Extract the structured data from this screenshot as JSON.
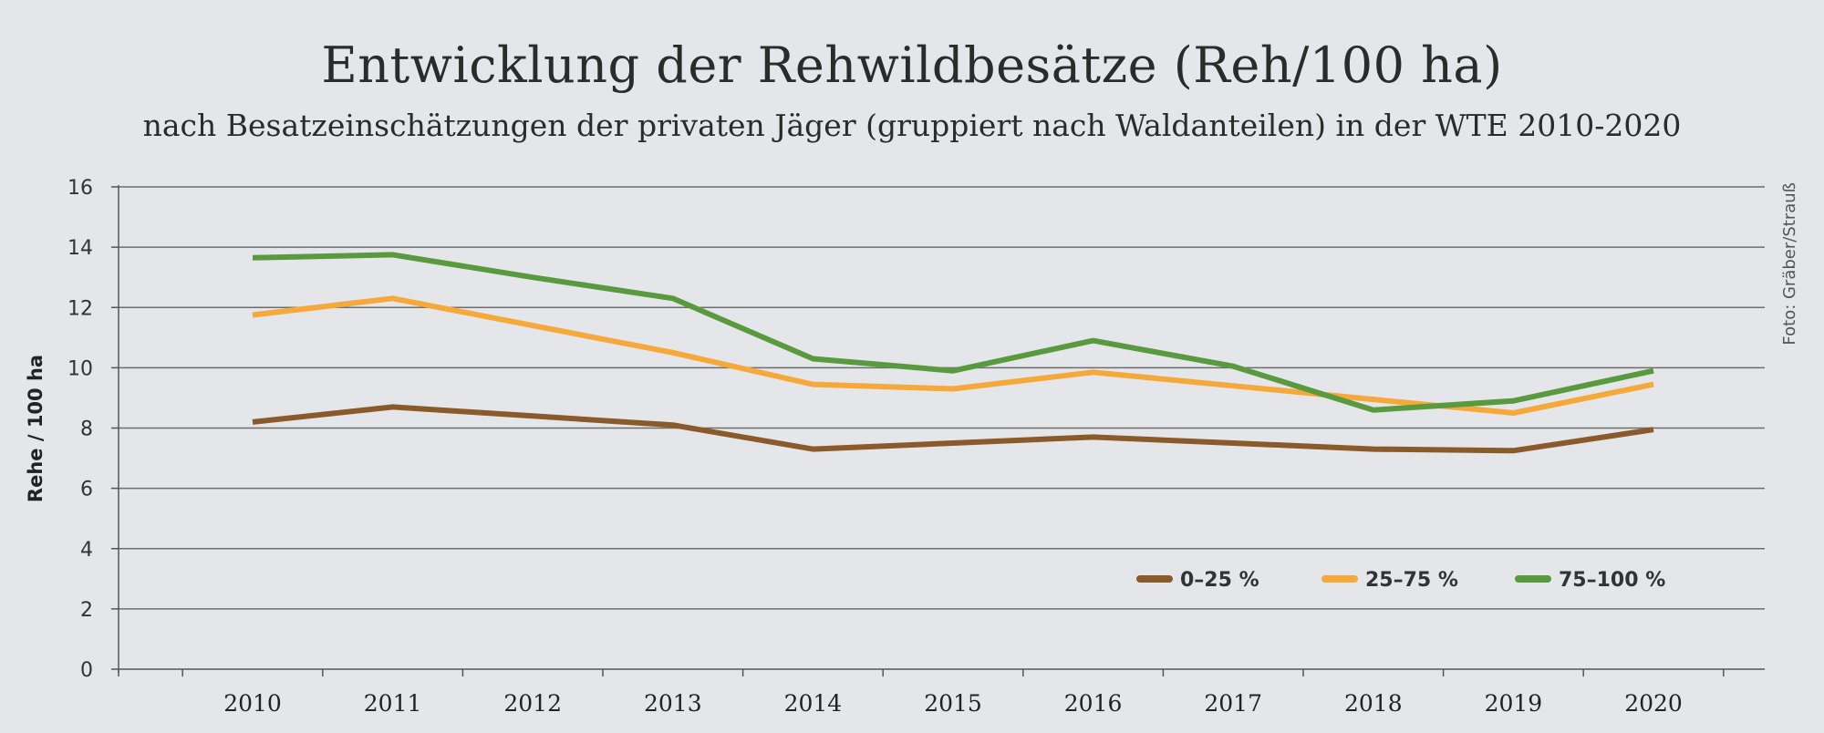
{
  "chart_data": {
    "type": "line",
    "title": "Entwicklung der Rehwildbesätze (Reh/100 ha)",
    "subtitle": "nach Besatzeinschätzungen der privaten Jäger (gruppiert nach Waldanteilen) in der WTE 2010-2020",
    "ylabel": "Rehe / 100 ha",
    "credit": "Foto: Gräber/Strauß",
    "ylim": [
      0,
      16
    ],
    "yticks": [
      "0",
      "2",
      "4",
      "6",
      "8",
      "10",
      "12",
      "14",
      "16"
    ],
    "x": [
      "2010",
      "2011",
      "2012",
      "2013",
      "2014",
      "2015",
      "2016",
      "2017",
      "2018",
      "2019",
      "2020"
    ],
    "grid": "horizontal",
    "legend_position": "bottom-right",
    "series": [
      {
        "name": "0–25 %",
        "color": "#8b5a2b",
        "values": [
          8.2,
          8.7,
          8.4,
          8.1,
          7.3,
          7.5,
          7.7,
          7.5,
          7.3,
          7.25,
          7.95
        ]
      },
      {
        "name": "25–75 %",
        "color": "#f5a93a",
        "values": [
          11.75,
          12.3,
          11.4,
          10.5,
          9.45,
          9.3,
          9.85,
          9.4,
          8.95,
          8.5,
          9.45
        ]
      },
      {
        "name": "75–100 %",
        "color": "#5a9a3e",
        "values": [
          13.65,
          13.75,
          13.0,
          12.3,
          10.3,
          9.9,
          10.9,
          10.05,
          8.6,
          8.9,
          9.9
        ]
      }
    ]
  }
}
